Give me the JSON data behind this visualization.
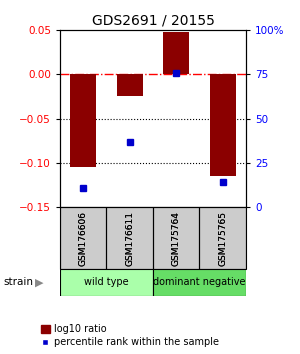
{
  "title": "GDS2691 / 20155",
  "samples": [
    "GSM176606",
    "GSM176611",
    "GSM175764",
    "GSM175765"
  ],
  "log10_ratio": [
    -0.105,
    -0.025,
    0.048,
    -0.115
  ],
  "percentile_rank": [
    11,
    37,
    76,
    14
  ],
  "groups": [
    {
      "label": "wild type",
      "samples": [
        0,
        1
      ],
      "color": "#aaffaa"
    },
    {
      "label": "dominant negative",
      "samples": [
        2,
        3
      ],
      "color": "#66dd66"
    }
  ],
  "ylim_left": [
    -0.15,
    0.05
  ],
  "ylim_right": [
    0,
    100
  ],
  "yticks_left": [
    -0.15,
    -0.1,
    -0.05,
    0,
    0.05
  ],
  "yticks_right": [
    0,
    25,
    50,
    75,
    100
  ],
  "bar_color": "#8B0000",
  "dot_color": "#0000CC",
  "hline_y": 0,
  "dotted_lines": [
    -0.05,
    -0.1
  ],
  "background_color": "#ffffff",
  "legend_bar_label": "log10 ratio",
  "legend_dot_label": "percentile rank within the sample",
  "strain_label": "strain",
  "label_box_color": "#CCCCCC",
  "bar_width": 0.55
}
